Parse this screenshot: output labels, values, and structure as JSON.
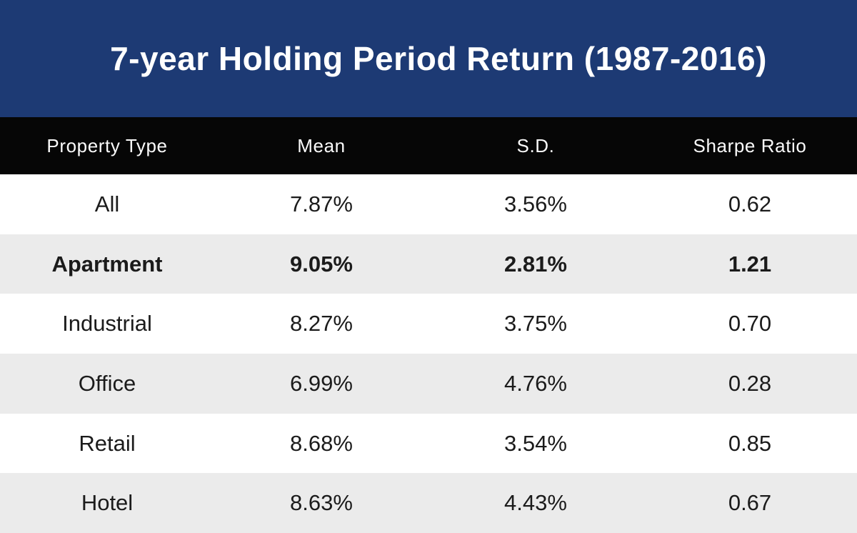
{
  "title": "7-year Holding Period Return (1987-2016)",
  "colors": {
    "banner_bg": "#1d3a74",
    "banner_text": "#ffffff",
    "table_header_bg": "#060606",
    "table_header_text": "#fafafa",
    "row_bg": "#ffffff",
    "row_alt_bg": "#ebebeb",
    "cell_text": "#1b1b1b"
  },
  "table": {
    "columns": [
      "Property Type",
      "Mean",
      "S.D.",
      "Sharpe Ratio"
    ],
    "rows": [
      {
        "cells": [
          "All",
          "7.87%",
          "3.56%",
          "0.62"
        ],
        "emphasis": false
      },
      {
        "cells": [
          "Apartment",
          "9.05%",
          "2.81%",
          "1.21"
        ],
        "emphasis": true
      },
      {
        "cells": [
          "Industrial",
          "8.27%",
          "3.75%",
          "0.70"
        ],
        "emphasis": false
      },
      {
        "cells": [
          "Office",
          "6.99%",
          "4.76%",
          "0.28"
        ],
        "emphasis": false
      },
      {
        "cells": [
          "Retail",
          "8.68%",
          "3.54%",
          "0.85"
        ],
        "emphasis": false
      },
      {
        "cells": [
          "Hotel",
          "8.63%",
          "4.43%",
          "0.67"
        ],
        "emphasis": false
      }
    ]
  },
  "chart_data": {
    "type": "table",
    "title": "7-year Holding Period Return (1987-2016)",
    "columns": [
      "Property Type",
      "Mean",
      "S.D.",
      "Sharpe Ratio"
    ],
    "rows": [
      [
        "All",
        "7.87%",
        "3.56%",
        "0.62"
      ],
      [
        "Apartment",
        "9.05%",
        "2.81%",
        "1.21"
      ],
      [
        "Industrial",
        "8.27%",
        "3.75%",
        "0.70"
      ],
      [
        "Office",
        "6.99%",
        "4.76%",
        "0.28"
      ],
      [
        "Retail",
        "8.68%",
        "3.54%",
        "0.85"
      ],
      [
        "Hotel",
        "8.63%",
        "4.43%",
        "0.67"
      ]
    ],
    "mean_values_pct": [
      7.87,
      9.05,
      8.27,
      6.99,
      8.68,
      8.63
    ],
    "sd_values_pct": [
      3.56,
      2.81,
      3.75,
      4.76,
      3.54,
      4.43
    ],
    "sharpe_ratios": [
      0.62,
      1.21,
      0.7,
      0.28,
      0.85,
      0.67
    ],
    "highlighted_row": "Apartment",
    "legend_position": "none",
    "grid": false
  }
}
